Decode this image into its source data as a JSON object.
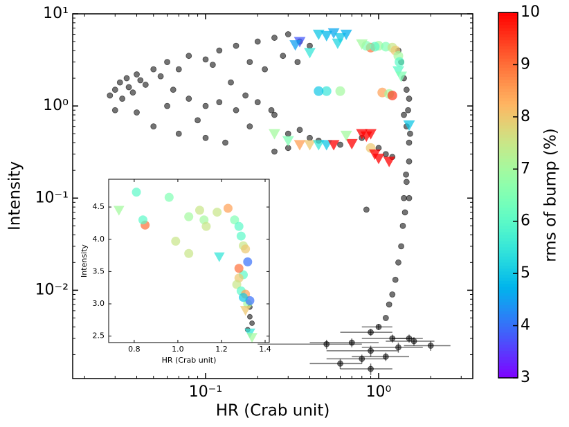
{
  "chart_data": {
    "type": "scatter",
    "xlabel": "HR (Crab unit)",
    "ylabel": "Intensity",
    "xscale": "log",
    "yscale": "log",
    "xlim": [
      0.01706,
      3.5
    ],
    "ylim": [
      0.0011,
      10
    ],
    "xticks": [
      {
        "value": 0.1,
        "label": "10⁻¹"
      },
      {
        "value": 1,
        "label": "10⁰"
      }
    ],
    "yticks": [
      {
        "value": 0.01,
        "label": "10⁻²"
      },
      {
        "value": 0.1,
        "label": "10⁻¹"
      },
      {
        "value": 1,
        "label": "10⁰"
      },
      {
        "value": 10,
        "label": "10¹"
      }
    ],
    "colormap": "rainbow",
    "groups": [
      {
        "marker": "o",
        "color": "#000000",
        "x": [
          0.03,
          0.032,
          0.035,
          0.04,
          0.028,
          0.045,
          0.05,
          0.06,
          0.07,
          0.08,
          0.1,
          0.12,
          0.15,
          0.2,
          0.25,
          0.3,
          0.35,
          0.18,
          0.22,
          0.28,
          0.4,
          0.03,
          0.04,
          0.06,
          0.08,
          0.1,
          0.12,
          0.15,
          0.2,
          0.25,
          0.05,
          0.07,
          0.1,
          0.13,
          0.09,
          0.18,
          0.3,
          0.35,
          0.4,
          0.45,
          0.25,
          0.3,
          0.6,
          0.8,
          1.0,
          1.1,
          1.2,
          1.3,
          1.35,
          1.4,
          1.45,
          1.5,
          1.4,
          1.45,
          1.5,
          1.5,
          1.45,
          1.4,
          1.42,
          1.38,
          1.35,
          1.3,
          1.25,
          1.2,
          1.15,
          1.1,
          0.85,
          1.5,
          0.036,
          0.038,
          0.042,
          0.033,
          0.055,
          0.065,
          0.11,
          0.14,
          0.17,
          0.24,
          0.34,
          1.48,
          1.52,
          1.44
        ],
        "y": [
          1.5,
          1.8,
          2.0,
          2.2,
          1.3,
          1.7,
          2.5,
          3.0,
          2.5,
          3.5,
          3.2,
          4.0,
          4.5,
          5.0,
          5.5,
          6.0,
          5.0,
          3.0,
          2.5,
          3.5,
          4.5,
          0.9,
          0.85,
          1.0,
          1.2,
          1.0,
          1.1,
          0.9,
          1.1,
          0.8,
          0.6,
          0.5,
          0.45,
          0.4,
          0.7,
          0.6,
          0.5,
          0.55,
          0.45,
          0.42,
          0.32,
          0.35,
          0.38,
          0.45,
          0.35,
          0.3,
          0.28,
          4.0,
          3.0,
          2.0,
          1.5,
          1.2,
          0.8,
          0.6,
          0.4,
          0.25,
          0.15,
          0.1,
          0.07,
          0.05,
          0.03,
          0.02,
          0.013,
          0.009,
          0.007,
          0.005,
          0.075,
          0.1,
          1.6,
          1.4,
          1.9,
          1.2,
          2.1,
          1.5,
          2.8,
          1.8,
          1.3,
          0.9,
          3.0,
          0.9,
          0.5,
          0.18
        ]
      },
      {
        "marker": "o",
        "color": "#000000",
        "x": [
          1.0,
          0.9,
          1.2,
          1.5,
          0.7,
          0.5,
          0.9,
          1.3,
          1.6,
          2.0,
          0.8,
          1.1,
          0.6,
          0.9
        ],
        "y": [
          0.004,
          0.0035,
          0.003,
          0.003,
          0.0027,
          0.0026,
          0.0022,
          0.0024,
          0.0028,
          0.0025,
          0.0018,
          0.0019,
          0.0016,
          0.0014
        ],
        "xerr": [
          0.2,
          0.3,
          0.4,
          0.3,
          0.3,
          0.3,
          0.4,
          0.5,
          0.5,
          0.6,
          0.3,
          0.4,
          0.2,
          0.3
        ],
        "yerr": [
          0.0003,
          0.0003,
          0.0003,
          0.0003,
          0.0003,
          0.0003,
          0.0003,
          0.0003,
          0.0003,
          0.0003,
          0.0002,
          0.0002,
          0.0002,
          0.0002
        ]
      },
      {
        "marker": "o",
        "x": [
          0.9,
          1.0,
          1.1,
          1.2,
          1.25,
          1.3,
          1.32,
          0.5,
          0.45,
          0.6,
          1.05,
          1.15,
          1.2,
          0.9,
          0.95,
          0.85
        ],
        "y": [
          4.3,
          4.5,
          4.4,
          4.3,
          4.0,
          3.5,
          3.0,
          1.45,
          1.45,
          1.45,
          1.4,
          1.35,
          1.3,
          0.35,
          4.4,
          4.5
        ],
        "c": [
          9,
          7,
          6.5,
          7.5,
          8,
          7,
          6,
          5.5,
          5,
          7,
          8.5,
          7,
          9.5,
          8,
          6,
          6.5
        ]
      },
      {
        "marker": "v",
        "x": [
          0.35,
          0.33,
          0.45,
          0.5,
          0.55,
          0.6,
          0.65,
          0.58,
          0.8,
          0.4,
          1.3,
          1.35,
          1.5,
          0.25,
          0.3,
          0.35,
          0.4,
          0.45,
          0.5,
          0.55,
          0.7,
          0.8,
          0.9,
          0.85,
          1.0,
          1.15,
          0.95,
          0.65
        ],
        "y": [
          5.0,
          4.6,
          6.0,
          5.8,
          6.2,
          5.5,
          6.0,
          4.8,
          4.7,
          3.8,
          2.4,
          2.1,
          0.62,
          0.5,
          0.42,
          0.38,
          0.38,
          0.38,
          0.38,
          0.38,
          0.39,
          0.5,
          0.5,
          0.47,
          0.27,
          0.25,
          0.3,
          0.48
        ],
        "c": [
          3.8,
          4.5,
          5,
          4.8,
          4.6,
          5,
          4.7,
          5.2,
          7,
          5.5,
          6,
          6.5,
          5,
          7,
          6.5,
          8.5,
          8,
          5.5,
          5,
          10,
          10,
          10,
          10,
          10,
          10,
          10,
          10,
          7
        ]
      }
    ],
    "colorbar": {
      "label": "rms of bump (%)",
      "clim": [
        3,
        10
      ],
      "ticks": [
        3,
        4,
        5,
        6,
        7,
        8,
        9,
        10
      ]
    },
    "inset": {
      "type": "scatter",
      "xlabel": "HR (Crab unit)",
      "ylabel": "Intensity",
      "xscale": "linear",
      "yscale": "linear",
      "xlim": [
        0.683,
        1.419
      ],
      "ylim": [
        2.4,
        4.93
      ],
      "xticks": [
        0.8,
        {
          "value": 1,
          "label": "1.0"
        },
        1.2,
        1.4
      ],
      "yticks": [
        2.5,
        {
          "value": 3,
          "label": "3.0"
        },
        3.5,
        {
          "value": 4,
          "label": "4.0"
        },
        4.5
      ],
      "groups": [
        {
          "marker": "o",
          "color": "#000000",
          "x": [
            1.33,
            1.34,
            1.32,
            1.33
          ],
          "y": [
            2.8,
            2.7,
            2.6,
            2.95
          ]
        },
        {
          "marker": "o",
          "x": [
            0.81,
            0.85,
            0.84,
            0.96,
            0.99,
            1.05,
            1.05,
            1.1,
            1.12,
            1.13,
            1.18,
            1.23,
            1.26,
            1.28,
            1.29,
            1.3,
            1.31,
            1.32,
            1.3,
            1.28,
            1.28,
            1.27,
            1.29,
            1.31,
            1.32,
            1.33,
            1.3
          ],
          "y": [
            4.73,
            4.22,
            4.3,
            4.65,
            3.97,
            3.78,
            4.35,
            4.45,
            4.3,
            4.2,
            4.42,
            4.48,
            4.3,
            4.2,
            4.05,
            3.9,
            3.85,
            3.65,
            3.45,
            3.55,
            3.4,
            3.3,
            3.2,
            3.15,
            3.0,
            3.05,
            3.1
          ],
          "c": [
            6,
            9,
            6,
            6.5,
            7.5,
            7.5,
            7,
            7.5,
            7,
            7.5,
            7.5,
            8.5,
            6.5,
            6,
            6,
            7.5,
            8,
            4,
            6,
            9,
            8,
            7.5,
            6,
            8.5,
            7,
            4,
            5
          ]
        },
        {
          "marker": "v",
          "x": [
            0.73,
            1.19,
            1.33,
            1.34,
            1.31
          ],
          "y": [
            4.45,
            3.73,
            2.55,
            2.48,
            2.9
          ],
          "c": [
            7,
            5.5,
            5.5,
            7,
            8
          ]
        }
      ]
    }
  }
}
